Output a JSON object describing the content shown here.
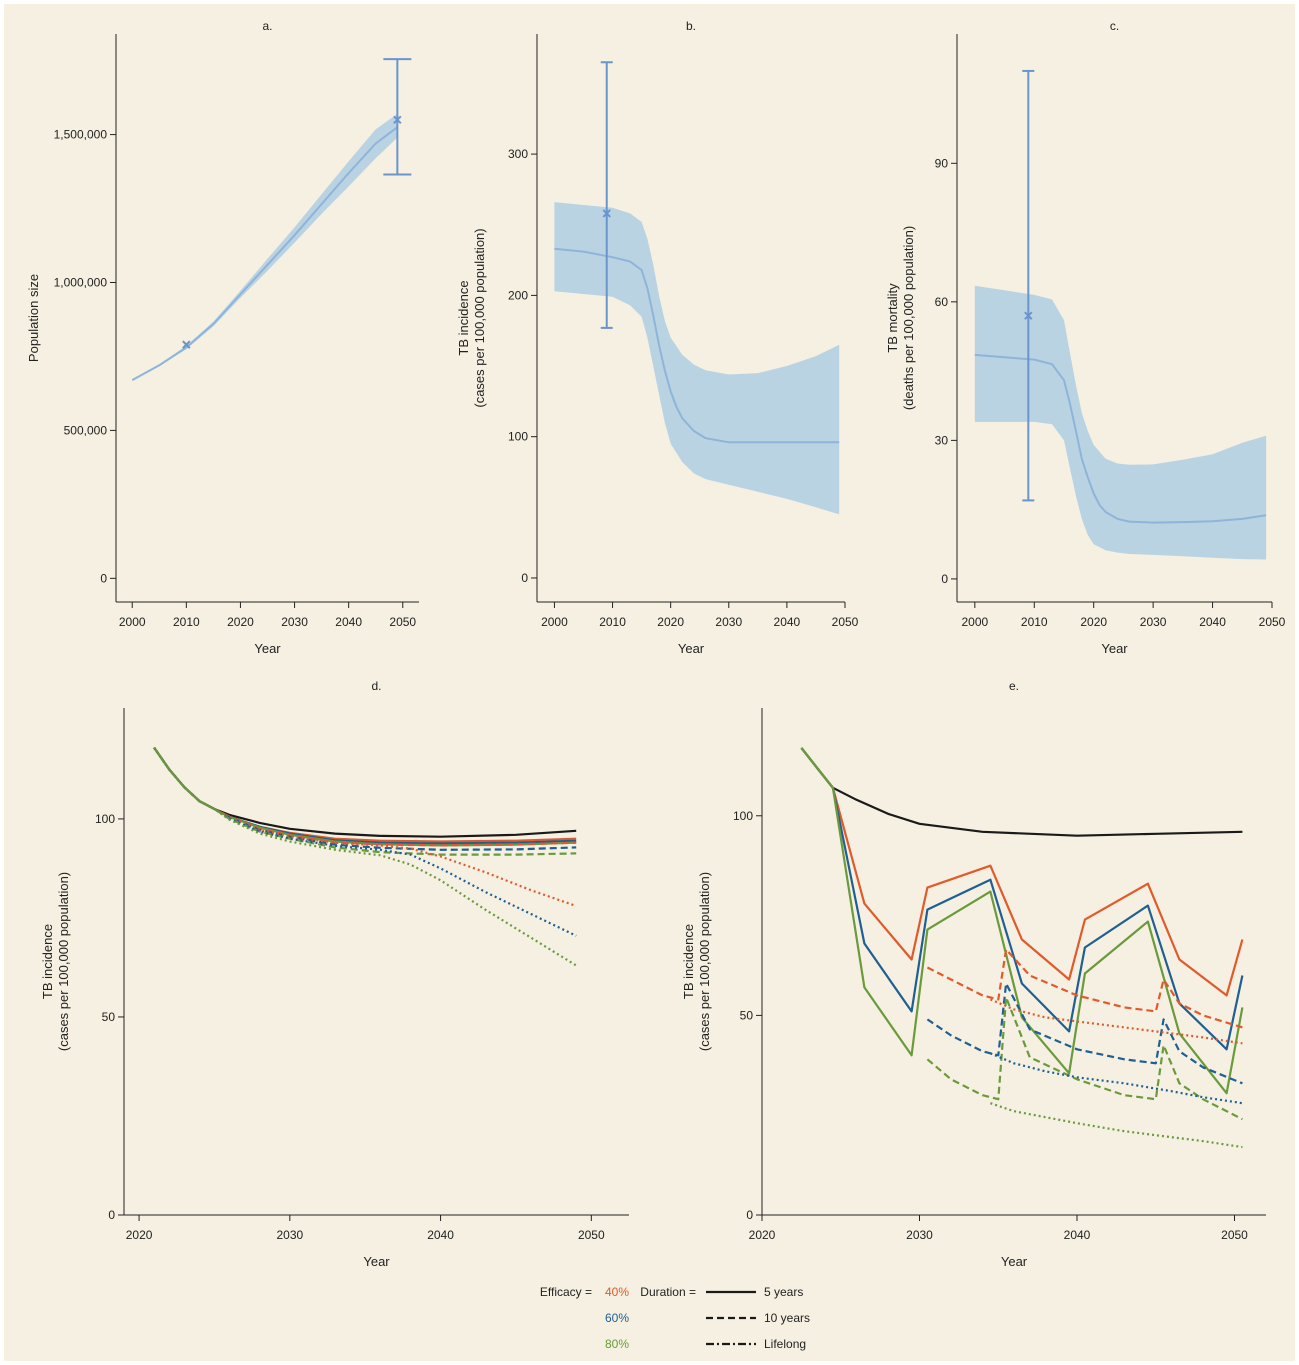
{
  "colors": {
    "background": "#f5f0e1",
    "band": "#b9d3e3",
    "central": "#8fb4d9",
    "marker": "#6a95cc",
    "e40": "#e05a2c",
    "e60": "#1f5f93",
    "e80": "#6a9a3c",
    "baseline": "#1a1a1a"
  },
  "chart_data": [
    {
      "id": "a",
      "type": "line",
      "title": "a.",
      "xlabel": "Year",
      "ylabel": "Population size",
      "xlim": [
        1997,
        2053
      ],
      "ylim": [
        -80000,
        1840000
      ],
      "xticks": [
        2000,
        2010,
        2020,
        2030,
        2040,
        2050
      ],
      "yticks": [
        0,
        500000,
        1000000,
        1500000
      ],
      "ytick_labels": [
        "0",
        "500,000",
        "1,000,000",
        "1,500,000"
      ],
      "series": [
        {
          "role": "central",
          "x": [
            2000,
            2005,
            2010,
            2015,
            2020,
            2025,
            2030,
            2035,
            2040,
            2045,
            2049
          ],
          "y": [
            670000,
            720000,
            780000,
            860000,
            960000,
            1060000,
            1160000,
            1265000,
            1370000,
            1470000,
            1525000
          ]
        }
      ],
      "band": {
        "x": [
          2000,
          2005,
          2010,
          2015,
          2020,
          2025,
          2030,
          2035,
          2040,
          2045,
          2049
        ],
        "lower": [
          670000,
          718000,
          775000,
          852000,
          948000,
          1040000,
          1135000,
          1232000,
          1325000,
          1420000,
          1490000
        ],
        "upper": [
          672000,
          724000,
          786000,
          868000,
          972000,
          1080000,
          1187000,
          1298000,
          1410000,
          1518000,
          1570000
        ]
      },
      "points": [
        {
          "x": 2010,
          "y": 790000
        },
        {
          "x": 2049,
          "y": 1550000,
          "err_low": 1365000,
          "err_high": 1755000
        }
      ]
    },
    {
      "id": "b",
      "type": "line",
      "title": "b.",
      "xlabel": "Year",
      "ylabel": "TB incidence",
      "ylabel2": "(cases per 100,000 population)",
      "xlim": [
        1997,
        2050
      ],
      "ylim": [
        -17,
        385
      ],
      "xticks": [
        2000,
        2010,
        2020,
        2030,
        2040,
        2050
      ],
      "yticks": [
        0,
        100,
        200,
        300
      ],
      "series": [
        {
          "role": "central",
          "x": [
            2000,
            2005,
            2010,
            2013,
            2015,
            2016,
            2017,
            2018,
            2019,
            2020,
            2021,
            2022,
            2024,
            2026,
            2030,
            2035,
            2040,
            2045,
            2049
          ],
          "y": [
            233,
            231,
            227,
            224,
            218,
            205,
            186,
            165,
            147,
            132,
            121,
            113,
            104,
            99,
            96,
            96,
            96,
            96,
            96
          ]
        }
      ],
      "band": {
        "x": [
          2000,
          2005,
          2010,
          2013,
          2015,
          2016,
          2017,
          2018,
          2019,
          2020,
          2022,
          2024,
          2026,
          2030,
          2035,
          2040,
          2045,
          2049
        ],
        "lower": [
          203,
          201,
          199,
          193,
          185,
          170,
          150,
          130,
          110,
          95,
          82,
          74,
          70,
          66,
          61,
          56,
          50,
          45
        ],
        "upper": [
          266,
          264,
          262,
          258,
          252,
          240,
          222,
          200,
          182,
          170,
          158,
          151,
          147,
          144,
          145,
          150,
          157,
          165
        ]
      },
      "points": [
        {
          "x": 2009,
          "y": 258,
          "err_low": 177,
          "err_high": 365
        }
      ]
    },
    {
      "id": "c",
      "type": "line",
      "title": "c.",
      "xlabel": "Year",
      "ylabel": "TB mortality",
      "ylabel2": "(deaths per 100,000 population)",
      "xlim": [
        1997,
        2050
      ],
      "ylim": [
        -5,
        118
      ],
      "xticks": [
        2000,
        2010,
        2020,
        2030,
        2040,
        2050
      ],
      "yticks": [
        0,
        30,
        60,
        90
      ],
      "series": [
        {
          "role": "central",
          "x": [
            2000,
            2005,
            2010,
            2013,
            2015,
            2016,
            2017,
            2018,
            2019,
            2020,
            2021,
            2022,
            2024,
            2026,
            2030,
            2035,
            2040,
            2045,
            2049
          ],
          "y": [
            48.5,
            48,
            47.5,
            46.5,
            43,
            38,
            32,
            26,
            22,
            18.5,
            16,
            14.5,
            13,
            12.4,
            12.2,
            12.3,
            12.5,
            13,
            13.8
          ]
        }
      ],
      "band": {
        "x": [
          2000,
          2005,
          2010,
          2013,
          2015,
          2016,
          2017,
          2018,
          2019,
          2020,
          2022,
          2024,
          2026,
          2030,
          2035,
          2040,
          2045,
          2049
        ],
        "lower": [
          34,
          34,
          34,
          33.5,
          30,
          24,
          18,
          13,
          9.5,
          7.5,
          6.2,
          5.7,
          5.4,
          5.2,
          4.9,
          4.6,
          4.3,
          4.2
        ],
        "upper": [
          63.5,
          62.5,
          61.5,
          60.5,
          56,
          49,
          42,
          36,
          32,
          29,
          26,
          25,
          24.7,
          24.8,
          25.8,
          27,
          29.5,
          31
        ]
      },
      "points": [
        {
          "x": 2009,
          "y": 57,
          "err_low": 17,
          "err_high": 110
        }
      ]
    },
    {
      "id": "d",
      "type": "line",
      "title": "d.",
      "xlabel": "Year",
      "ylabel": "TB incidence",
      "ylabel2": "(cases per 100,000 population)",
      "xlim": [
        2019,
        2052.5
      ],
      "ylim": [
        0,
        128
      ],
      "xticks": [
        2020,
        2030,
        2040,
        2050
      ],
      "yticks": [
        0,
        50,
        100
      ],
      "series": [
        {
          "color": "baseline",
          "dash": "solid",
          "x": [
            2021,
            2022,
            2023,
            2024,
            2025,
            2026,
            2028,
            2030,
            2033,
            2036,
            2040,
            2045,
            2049
          ],
          "y": [
            118,
            112.5,
            108,
            104.5,
            102.5,
            101,
            99,
            97.5,
            96.3,
            95.7,
            95.5,
            96,
            97
          ]
        },
        {
          "color": "e40",
          "dash": "solid",
          "x": [
            2021,
            2022,
            2023,
            2024,
            2025,
            2026,
            2028,
            2030,
            2033,
            2036,
            2040,
            2045,
            2049
          ],
          "y": [
            118,
            112.5,
            108,
            104.5,
            102.5,
            100.5,
            98,
            96.5,
            95,
            94.5,
            94.3,
            94.5,
            95
          ]
        },
        {
          "color": "e60",
          "dash": "solid",
          "x": [
            2021,
            2022,
            2023,
            2024,
            2025,
            2026,
            2028,
            2030,
            2033,
            2036,
            2040,
            2045,
            2049
          ],
          "y": [
            118,
            112.5,
            108,
            104.5,
            102.5,
            100.5,
            98,
            96.3,
            94.6,
            94,
            93.8,
            94,
            94.5
          ]
        },
        {
          "color": "e80",
          "dash": "solid",
          "x": [
            2021,
            2022,
            2023,
            2024,
            2025,
            2026,
            2028,
            2030,
            2033,
            2036,
            2040,
            2045,
            2049
          ],
          "y": [
            118,
            112.5,
            108,
            104.5,
            102.5,
            100.5,
            97.8,
            96,
            94.3,
            93.6,
            93.3,
            93.5,
            94
          ]
        },
        {
          "color": "e40",
          "dash": "dashed",
          "x": [
            2021,
            2022,
            2023,
            2024,
            2025,
            2026,
            2028,
            2030,
            2033,
            2036,
            2040,
            2045,
            2049
          ],
          "y": [
            118,
            112.5,
            108,
            104.5,
            102.5,
            100.5,
            97.5,
            95.8,
            94,
            93.6,
            93.3,
            93.6,
            94
          ]
        },
        {
          "color": "e60",
          "dash": "dashed",
          "x": [
            2021,
            2022,
            2023,
            2024,
            2025,
            2026,
            2028,
            2030,
            2033,
            2036,
            2040,
            2045,
            2049
          ],
          "y": [
            118,
            112.5,
            108,
            104.5,
            102.5,
            100.3,
            97.2,
            95.5,
            93.5,
            92.7,
            92.2,
            92.3,
            92.8
          ]
        },
        {
          "color": "e80",
          "dash": "dashed",
          "x": [
            2021,
            2022,
            2023,
            2024,
            2025,
            2026,
            2028,
            2030,
            2033,
            2036,
            2040,
            2045,
            2049
          ],
          "y": [
            118,
            112.5,
            108,
            104.5,
            102.5,
            100,
            96.8,
            95,
            92.8,
            91.6,
            91,
            91,
            91.3
          ]
        },
        {
          "color": "e40",
          "dash": "dotted",
          "x": [
            2021,
            2022,
            2023,
            2024,
            2025,
            2026,
            2028,
            2030,
            2033,
            2036,
            2038,
            2040,
            2043,
            2046,
            2049
          ],
          "y": [
            118,
            112.5,
            108,
            104.5,
            102.5,
            100.3,
            97.2,
            95.5,
            94,
            93.3,
            92.5,
            90.5,
            86.5,
            82,
            78
          ]
        },
        {
          "color": "e60",
          "dash": "dotted",
          "x": [
            2021,
            2022,
            2023,
            2024,
            2025,
            2026,
            2028,
            2030,
            2033,
            2036,
            2038,
            2040,
            2043,
            2046,
            2049
          ],
          "y": [
            118,
            112.5,
            108,
            104.5,
            102.5,
            100,
            96.8,
            95,
            93.2,
            92.2,
            91,
            87.5,
            81.5,
            76,
            70.5
          ]
        },
        {
          "color": "e80",
          "dash": "dotted",
          "x": [
            2021,
            2022,
            2023,
            2024,
            2025,
            2026,
            2028,
            2030,
            2033,
            2036,
            2038,
            2040,
            2043,
            2046,
            2049
          ],
          "y": [
            118,
            112.5,
            108,
            104.5,
            102.5,
            99.8,
            96.3,
            94.3,
            92.2,
            90.8,
            88.5,
            84.5,
            77,
            70,
            63
          ]
        }
      ]
    },
    {
      "id": "e",
      "type": "line",
      "title": "e.",
      "xlabel": "Year",
      "ylabel": "TB incidence",
      "ylabel2": "(cases per 100,000 population)",
      "xlim": [
        2020,
        2052
      ],
      "ylim": [
        0,
        127
      ],
      "xticks": [
        2020,
        2030,
        2040,
        2050
      ],
      "yticks": [
        0,
        50,
        100
      ],
      "series": [
        {
          "color": "baseline",
          "dash": "solid",
          "x": [
            2022.5,
            2023.5,
            2024.5,
            2026,
            2028,
            2030,
            2034,
            2040,
            2045,
            2050.5
          ],
          "y": [
            117,
            112,
            107,
            104,
            100.5,
            98,
            96,
            95,
            95.5,
            96
          ]
        },
        {
          "color": "e40",
          "dash": "solid",
          "x": [
            2022.5,
            2023.5,
            2024.5,
            2026.5,
            2029.5,
            2030.5,
            2034.5,
            2036.5,
            2039.5,
            2040.5,
            2044.5,
            2046.5,
            2049.5,
            2050.5
          ],
          "y": [
            117,
            112,
            107,
            78,
            64,
            82,
            87.5,
            69,
            59,
            74,
            83,
            64,
            55,
            69
          ]
        },
        {
          "color": "e60",
          "dash": "solid",
          "x": [
            2022.5,
            2023.5,
            2024.5,
            2026.5,
            2029.5,
            2030.5,
            2034.5,
            2036.5,
            2039.5,
            2040.5,
            2044.5,
            2046.5,
            2049.5,
            2050.5
          ],
          "y": [
            117,
            112,
            107,
            68,
            51,
            76.5,
            84,
            58,
            46,
            67,
            77.5,
            53,
            41.5,
            60
          ]
        },
        {
          "color": "e80",
          "dash": "solid",
          "x": [
            2022.5,
            2023.5,
            2024.5,
            2026.5,
            2029.5,
            2030.5,
            2034.5,
            2036.5,
            2039.5,
            2040.5,
            2044.5,
            2046.5,
            2049.5,
            2050.5
          ],
          "y": [
            117,
            112,
            107,
            57,
            40,
            71.5,
            81,
            49.5,
            35.5,
            60.5,
            73.5,
            45.5,
            30.5,
            52
          ]
        },
        {
          "color": "e40",
          "dash": "dashed",
          "x": [
            2030.5,
            2032,
            2034,
            2035,
            2035.5,
            2037,
            2040,
            2043,
            2045,
            2045.5,
            2046.5,
            2048,
            2050.5
          ],
          "y": [
            62,
            59,
            55,
            54,
            66.5,
            60,
            55,
            52,
            51,
            59,
            53,
            50,
            47
          ]
        },
        {
          "color": "e60",
          "dash": "dashed",
          "x": [
            2030.5,
            2032,
            2034,
            2035,
            2035.5,
            2037,
            2040,
            2043,
            2045,
            2045.5,
            2046.5,
            2048,
            2050.5
          ],
          "y": [
            49,
            45,
            41,
            40,
            58,
            46.5,
            41.5,
            39,
            38,
            49,
            41,
            37,
            33
          ]
        },
        {
          "color": "e80",
          "dash": "dashed",
          "x": [
            2030.5,
            2032,
            2034,
            2035,
            2035.5,
            2037,
            2040,
            2043,
            2045,
            2045.5,
            2046.5,
            2048,
            2050.5
          ],
          "y": [
            39,
            34,
            30,
            29,
            54.5,
            39.5,
            34,
            30,
            29,
            42.5,
            33,
            29,
            24
          ]
        },
        {
          "color": "e40",
          "dash": "dotted",
          "x": [
            2034.5,
            2036,
            2038,
            2040,
            2043,
            2046,
            2048,
            2050.5
          ],
          "y": [
            54,
            51.5,
            49.5,
            48.5,
            47,
            45.5,
            44.5,
            43
          ]
        },
        {
          "color": "e60",
          "dash": "dotted",
          "x": [
            2034.5,
            2036,
            2038,
            2040,
            2043,
            2046,
            2048,
            2050.5
          ],
          "y": [
            40.5,
            38,
            36,
            34.5,
            33,
            31,
            29.5,
            28
          ]
        },
        {
          "color": "e80",
          "dash": "dotted",
          "x": [
            2034.5,
            2036,
            2038,
            2040,
            2043,
            2046,
            2048,
            2050.5
          ],
          "y": [
            28,
            26,
            24.5,
            23,
            21,
            19.5,
            18.5,
            17
          ]
        }
      ]
    }
  ],
  "legend": {
    "efficacy_label": "Efficacy =",
    "efficacy_items": [
      {
        "label": "40%",
        "color": "e40"
      },
      {
        "label": "60%",
        "color": "e60"
      },
      {
        "label": "80%",
        "color": "e80"
      }
    ],
    "duration_label": "Duration =",
    "duration_items": [
      {
        "label": "5 years",
        "dash": "solid"
      },
      {
        "label": "10 years",
        "dash": "dashed"
      },
      {
        "label": "Lifelong",
        "dash": "dashdot"
      }
    ]
  }
}
